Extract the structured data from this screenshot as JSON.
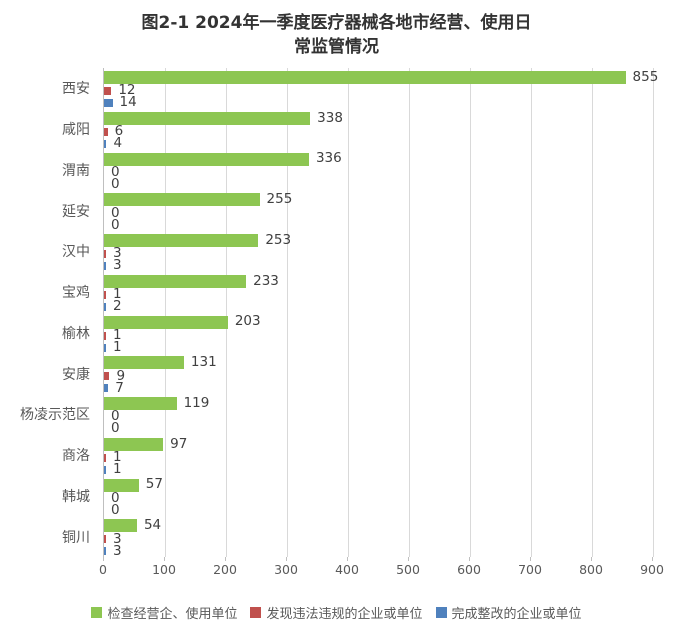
{
  "title": {
    "line1": "图2-1 2024年一季度医疗器械各地市经营、使用日",
    "line2": "常监管情况"
  },
  "chart_data": {
    "type": "bar",
    "orientation": "horizontal",
    "title": "图2-1 2024年一季度医疗器械各地市经营、使用日常监管情况",
    "categories": [
      "西安",
      "咸阳",
      "渭南",
      "延安",
      "汉中",
      "宝鸡",
      "榆林",
      "安康",
      "杨凌示范区",
      "商洛",
      "韩城",
      "铜川"
    ],
    "series": [
      {
        "name": "检查经营企、使用单位",
        "color": "#8dc652",
        "values": [
          855,
          338,
          336,
          255,
          253,
          233,
          203,
          131,
          119,
          97,
          57,
          54
        ]
      },
      {
        "name": "发现违法违规的企业或单位",
        "color": "#c0504d",
        "values": [
          12,
          6,
          0,
          0,
          3,
          1,
          1,
          9,
          0,
          1,
          0,
          3
        ]
      },
      {
        "name": "完成整改的企业或单位",
        "color": "#4f81bd",
        "values": [
          14,
          4,
          0,
          0,
          3,
          2,
          1,
          7,
          0,
          1,
          0,
          3
        ]
      }
    ],
    "xlim": [
      0,
      900
    ],
    "x_ticks": [
      0,
      100,
      200,
      300,
      400,
      500,
      600,
      700,
      800,
      900
    ],
    "grid": true,
    "data_labels": true,
    "legend_position": "bottom"
  }
}
